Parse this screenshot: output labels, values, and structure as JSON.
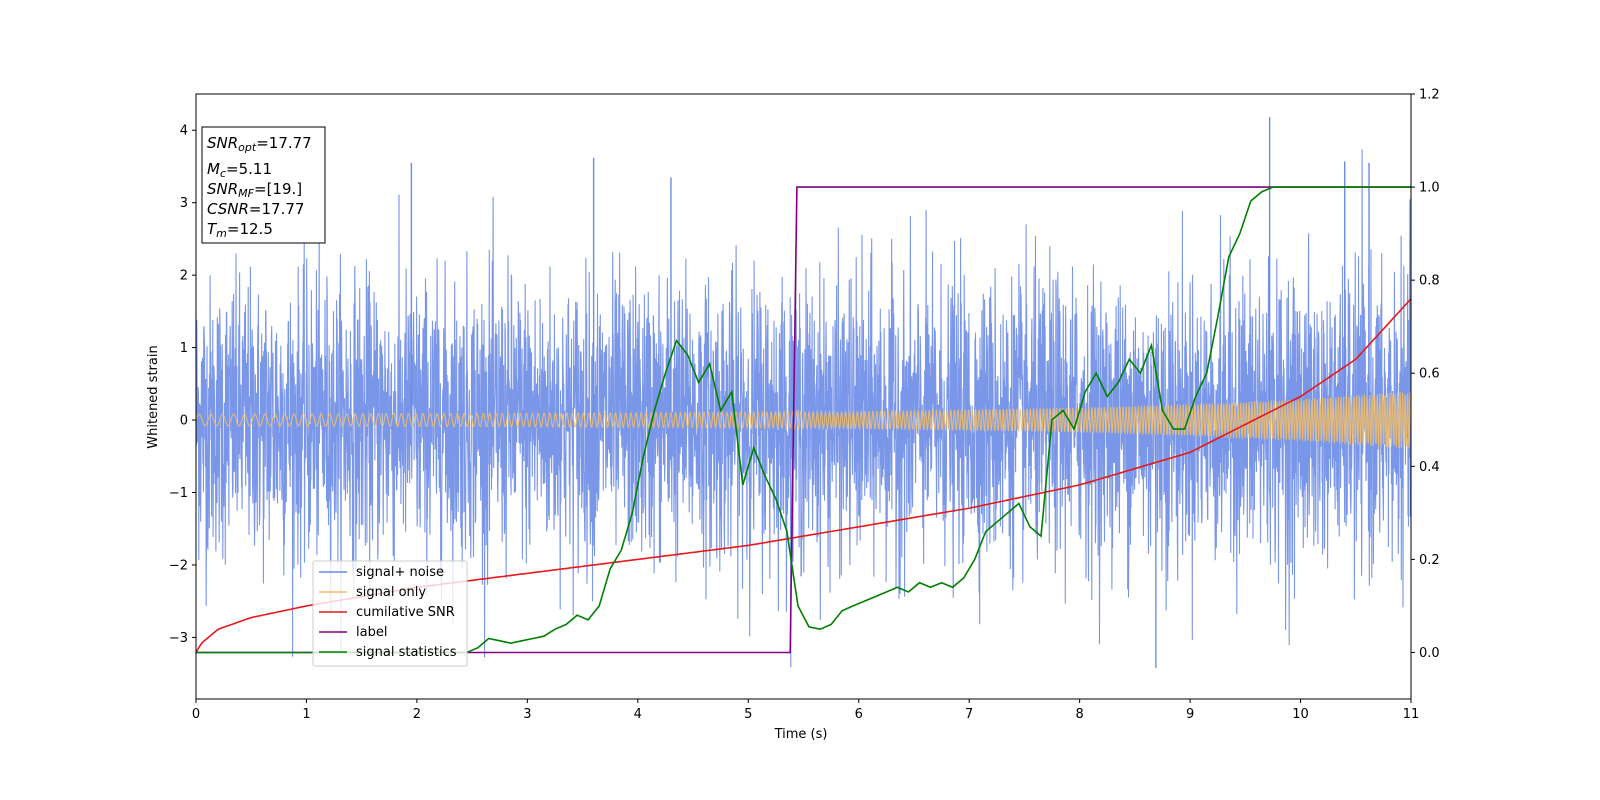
{
  "chart_data": {
    "type": "line",
    "title": "",
    "xlabel": "Time (s)",
    "ylabel": "Whitened strain",
    "xlim": [
      0,
      11
    ],
    "ylim": [
      -3.85,
      4.5
    ],
    "y2lim": [
      -0.1,
      1.2
    ],
    "xticks": [
      0,
      1,
      2,
      3,
      4,
      5,
      6,
      7,
      8,
      9,
      10,
      11
    ],
    "yticks": [
      -3,
      -2,
      -1,
      0,
      1,
      2,
      3,
      4
    ],
    "y2ticks": [
      "0.0",
      "0.2",
      "0.4",
      "0.6",
      "0.8",
      "1.0",
      "1.2"
    ],
    "info_box": {
      "snr_opt": {
        "base": "SNR",
        "sub": "opt",
        "value": "=17.77"
      },
      "mc": {
        "base": "M",
        "sub": "c",
        "value": "=5.11"
      },
      "snr_mf": {
        "base": "SNR",
        "sub": "MF",
        "value": "=[19.]"
      },
      "csnr": {
        "base": "CSNR",
        "value": "=17.77"
      },
      "tm": {
        "base": "T",
        "sub": "m",
        "value": "=12.5"
      }
    },
    "legend": {
      "placement": "lower-left",
      "entries": [
        "signal+ noise",
        "signal only",
        "cumilative SNR",
        "label",
        "signal statistics"
      ]
    },
    "colors": {
      "noise": "#6a8be6",
      "signal": "#f5bf66",
      "cumulative_snr": "#e41a1c",
      "label": "#800080",
      "statistics": "#008000"
    },
    "series": [
      {
        "name": "signal+ noise",
        "axis": "left",
        "description_values": {
          "typical_abs_max": 2.0,
          "peak_values": [
            4.18,
            -3.42,
            3.62,
            3.57
          ]
        }
      },
      {
        "name": "signal only",
        "axis": "left",
        "envelope": {
          "x": [
            0,
            2,
            4,
            6,
            8,
            9,
            10,
            11
          ],
          "amplitude": [
            0.08,
            0.09,
            0.1,
            0.12,
            0.17,
            0.22,
            0.29,
            0.4
          ]
        }
      },
      {
        "name": "cumilative SNR",
        "axis": "right",
        "x": [
          0,
          0.05,
          0.2,
          0.5,
          1,
          2,
          3,
          4,
          5,
          6,
          7,
          8,
          9,
          10,
          10.5,
          11
        ],
        "y": [
          0.0,
          0.02,
          0.05,
          0.075,
          0.1,
          0.14,
          0.17,
          0.2,
          0.23,
          0.27,
          0.31,
          0.36,
          0.43,
          0.55,
          0.63,
          0.76
        ]
      },
      {
        "name": "label",
        "axis": "right",
        "x": [
          0,
          5.38,
          5.44,
          11
        ],
        "y": [
          0,
          0,
          1,
          1
        ]
      },
      {
        "name": "signal statistics",
        "axis": "right",
        "x": [
          0,
          2.45,
          2.55,
          2.65,
          2.75,
          2.85,
          2.95,
          3.05,
          3.15,
          3.25,
          3.35,
          3.45,
          3.55,
          3.65,
          3.75,
          3.85,
          3.95,
          4.05,
          4.15,
          4.25,
          4.35,
          4.45,
          4.55,
          4.65,
          4.75,
          4.85,
          4.95,
          5.05,
          5.15,
          5.25,
          5.35,
          5.45,
          5.55,
          5.65,
          5.75,
          5.85,
          5.95,
          6.05,
          6.15,
          6.25,
          6.35,
          6.45,
          6.55,
          6.65,
          6.75,
          6.85,
          6.95,
          7.05,
          7.15,
          7.25,
          7.35,
          7.45,
          7.55,
          7.65,
          7.75,
          7.85,
          7.95,
          8.05,
          8.15,
          8.25,
          8.35,
          8.45,
          8.55,
          8.65,
          8.75,
          8.85,
          8.95,
          9.05,
          9.15,
          9.25,
          9.35,
          9.45,
          9.55,
          9.65,
          9.75,
          9.85,
          10,
          10.5,
          11
        ],
        "y": [
          0.0,
          0.0,
          0.01,
          0.03,
          0.025,
          0.02,
          0.025,
          0.03,
          0.035,
          0.05,
          0.06,
          0.08,
          0.07,
          0.1,
          0.18,
          0.22,
          0.3,
          0.42,
          0.52,
          0.6,
          0.67,
          0.64,
          0.58,
          0.62,
          0.52,
          0.56,
          0.36,
          0.44,
          0.38,
          0.33,
          0.26,
          0.1,
          0.055,
          0.05,
          0.06,
          0.09,
          0.1,
          0.11,
          0.12,
          0.13,
          0.14,
          0.13,
          0.15,
          0.14,
          0.15,
          0.14,
          0.16,
          0.2,
          0.26,
          0.28,
          0.3,
          0.32,
          0.27,
          0.25,
          0.5,
          0.52,
          0.48,
          0.56,
          0.6,
          0.55,
          0.58,
          0.63,
          0.6,
          0.66,
          0.52,
          0.48,
          0.48,
          0.55,
          0.6,
          0.72,
          0.85,
          0.9,
          0.97,
          0.99,
          1.0,
          1.0,
          1.0,
          1.0,
          1.0
        ]
      }
    ]
  }
}
